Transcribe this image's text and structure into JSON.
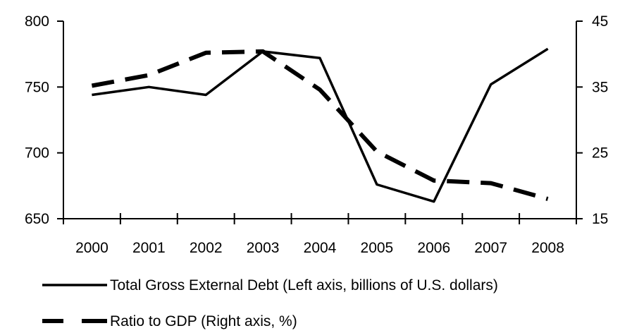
{
  "chart_data": {
    "type": "line",
    "title": "",
    "xlabel": "",
    "categories": [
      "2000",
      "2001",
      "2002",
      "2003",
      "2004",
      "2005",
      "2006",
      "2007",
      "2008"
    ],
    "y_left": {
      "ticks": [
        "650",
        "700",
        "750",
        "800"
      ],
      "ylim": [
        650,
        800
      ]
    },
    "y_right": {
      "ticks": [
        "15",
        "25",
        "35",
        "45"
      ],
      "ylim": [
        15,
        45
      ]
    },
    "grid": false,
    "legend_position": "bottom",
    "series": [
      {
        "name": "Total Gross External Debt (Left axis, billions of U.S. dollars)",
        "axis": "left",
        "style": "solid",
        "color": "#000000",
        "values": [
          744,
          750,
          744,
          777,
          772,
          676,
          663,
          752,
          779
        ]
      },
      {
        "name": "Ratio to GDP (Right axis, %)",
        "axis": "right",
        "style": "dashed",
        "color": "#000000",
        "values": [
          35.2,
          36.8,
          40.2,
          40.4,
          34.6,
          25.2,
          20.8,
          20.4,
          18.0
        ]
      }
    ]
  }
}
